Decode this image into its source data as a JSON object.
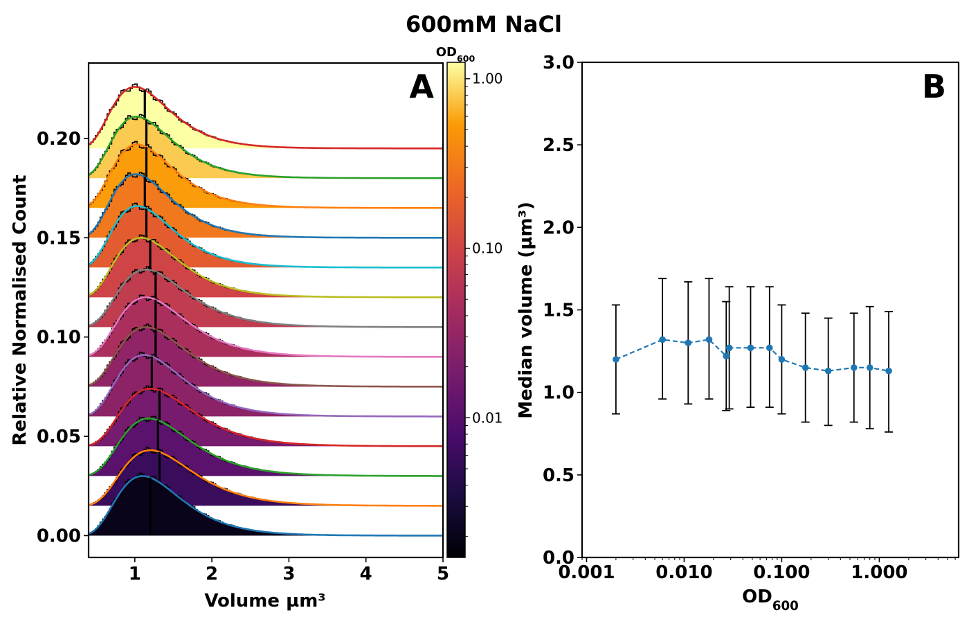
{
  "figure": {
    "title": "600mM NaCl",
    "panel_a_label": "A",
    "panel_b_label": "B"
  },
  "chart_data": [
    {
      "type": "area",
      "panel": "A",
      "xlabel": "Volume µm³",
      "ylabel": "Relative Normalised Count",
      "xlim": [
        0.4,
        5
      ],
      "ylim": [
        -0.011,
        0.238
      ],
      "x_ticks": [
        1,
        2,
        3,
        4,
        5
      ],
      "y_ticks": [
        0.0,
        0.05,
        0.1,
        0.15,
        0.2
      ],
      "y_tick_labels": [
        "0.00",
        "0.05",
        "0.10",
        "0.15",
        "0.20"
      ],
      "offset_step": 0.015,
      "colorbar": {
        "label": "OD600",
        "scale": "log",
        "range": [
          0.0015,
          1.25
        ],
        "ticks": [
          0.01,
          0.1,
          1.0
        ],
        "tick_labels": [
          "0.01",
          "0.10",
          "1.00"
        ],
        "colormap": "inferno"
      },
      "series": [
        {
          "od": 0.002,
          "peak": 1.1,
          "height": 0.03,
          "median": 1.2,
          "fit_color": "#1f77b4"
        },
        {
          "od": 0.006,
          "peak": 1.2,
          "height": 0.028,
          "median": 1.32,
          "fit_color": "#ff7f0e"
        },
        {
          "od": 0.011,
          "peak": 1.18,
          "height": 0.029,
          "median": 1.3,
          "fit_color": "#2ca02c"
        },
        {
          "od": 0.018,
          "peak": 1.2,
          "height": 0.029,
          "median": 1.32,
          "fit_color": "#d62728"
        },
        {
          "od": 0.027,
          "peak": 1.12,
          "height": 0.031,
          "median": 1.22,
          "fit_color": "#9467bd"
        },
        {
          "od": 0.029,
          "peak": 1.14,
          "height": 0.03,
          "median": 1.27,
          "fit_color": "#8c564b"
        },
        {
          "od": 0.048,
          "peak": 1.14,
          "height": 0.03,
          "median": 1.27,
          "fit_color": "#e377c2"
        },
        {
          "od": 0.075,
          "peak": 1.14,
          "height": 0.029,
          "median": 1.27,
          "fit_color": "#7f7f7f"
        },
        {
          "od": 0.1,
          "peak": 1.08,
          "height": 0.03,
          "median": 1.2,
          "fit_color": "#bcbd22"
        },
        {
          "od": 0.175,
          "peak": 1.03,
          "height": 0.031,
          "median": 1.15,
          "fit_color": "#17becf"
        },
        {
          "od": 0.3,
          "peak": 1.01,
          "height": 0.032,
          "median": 1.13,
          "fit_color": "#1f77b4"
        },
        {
          "od": 0.55,
          "peak": 1.03,
          "height": 0.032,
          "median": 1.15,
          "fit_color": "#ff7f0e"
        },
        {
          "od": 0.8,
          "peak": 1.02,
          "height": 0.031,
          "median": 1.15,
          "fit_color": "#2ca02c"
        },
        {
          "od": 1.25,
          "peak": 1.0,
          "height": 0.031,
          "median": 1.13,
          "fit_color": "#d62728"
        }
      ]
    },
    {
      "type": "scatter",
      "panel": "B",
      "xlabel": "OD600",
      "ylabel": "Median volume (µm³)",
      "xscale": "log",
      "xlim": [
        0.0009,
        6.5
      ],
      "ylim": [
        0,
        3
      ],
      "x_ticks": [
        0.001,
        0.01,
        0.1,
        1.0
      ],
      "x_tick_labels": [
        "0.001",
        "0.010",
        "0.100",
        "1.000"
      ],
      "y_ticks": [
        0.0,
        0.5,
        1.0,
        1.5,
        2.0,
        2.5,
        3.0
      ],
      "y_tick_labels": [
        "0.0",
        "0.5",
        "1.0",
        "1.5",
        "2.0",
        "2.5",
        "3.0"
      ],
      "series": [
        {
          "line_style": "dashed",
          "color": "#1f77b4",
          "x": [
            0.002,
            0.006,
            0.011,
            0.018,
            0.027,
            0.029,
            0.048,
            0.075,
            0.1,
            0.175,
            0.3,
            0.55,
            0.8,
            1.25
          ],
          "y": [
            1.2,
            1.32,
            1.3,
            1.32,
            1.22,
            1.27,
            1.27,
            1.27,
            1.2,
            1.15,
            1.13,
            1.15,
            1.15,
            1.13
          ],
          "err_low": [
            0.87,
            0.96,
            0.93,
            0.96,
            0.89,
            0.9,
            0.91,
            0.91,
            0.87,
            0.82,
            0.8,
            0.82,
            0.78,
            0.76
          ],
          "err_high": [
            1.53,
            1.69,
            1.67,
            1.69,
            1.55,
            1.64,
            1.64,
            1.64,
            1.53,
            1.48,
            1.45,
            1.48,
            1.52,
            1.49
          ]
        }
      ]
    }
  ]
}
